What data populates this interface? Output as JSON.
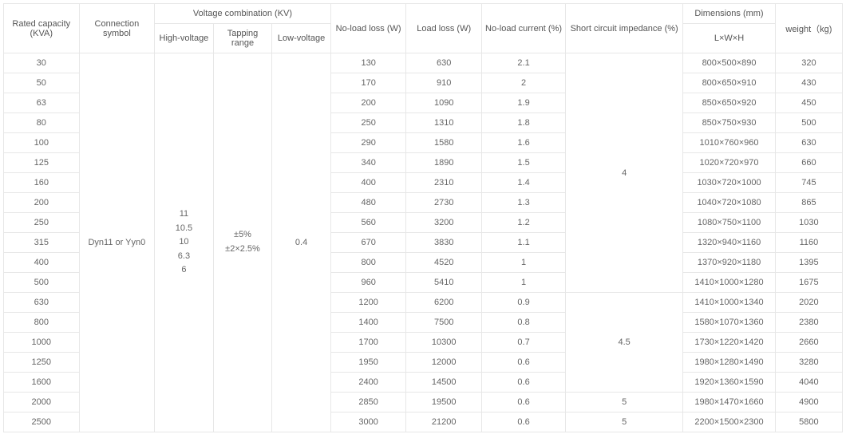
{
  "headers": {
    "rated_capacity": "Rated capacity (KVA)",
    "connection_symbol": "Connection symbol",
    "voltage_combination": "Voltage combination (KV)",
    "high_voltage": "High-voltage",
    "tapping_range": "Tapping range",
    "low_voltage": "Low-voltage",
    "no_load_loss": "No-load loss (W)",
    "load_loss": "Load loss (W)",
    "no_load_current": "No-load current (%)",
    "short_circuit_impedance": "Short circuit impedance (%)",
    "dimensions": "Dimensions (mm)",
    "dimensions_sub": "L×W×H",
    "weight": "weight（kg)"
  },
  "shared": {
    "connection_symbol": "Dyn11 or Yyn0",
    "high_voltage_lines": [
      "11",
      "10.5",
      "10",
      "6.3",
      "6"
    ],
    "tapping_range_lines": [
      "±5%",
      "±2×2.5%"
    ],
    "low_voltage": "0.4"
  },
  "impedance": {
    "g1": "4",
    "g2": "4.5",
    "g3": "5",
    "g4": "5"
  },
  "rows": [
    {
      "capacity": "30",
      "no_load_loss": "130",
      "load_loss": "630",
      "no_load_current": "2.1",
      "dimensions": "800×500×890",
      "weight": "320"
    },
    {
      "capacity": "50",
      "no_load_loss": "170",
      "load_loss": "910",
      "no_load_current": "2",
      "dimensions": "800×650×910",
      "weight": "430"
    },
    {
      "capacity": "63",
      "no_load_loss": "200",
      "load_loss": "1090",
      "no_load_current": "1.9",
      "dimensions": "850×650×920",
      "weight": "450"
    },
    {
      "capacity": "80",
      "no_load_loss": "250",
      "load_loss": "1310",
      "no_load_current": "1.8",
      "dimensions": "850×750×930",
      "weight": "500"
    },
    {
      "capacity": "100",
      "no_load_loss": "290",
      "load_loss": "1580",
      "no_load_current": "1.6",
      "dimensions": "1010×760×960",
      "weight": "630"
    },
    {
      "capacity": "125",
      "no_load_loss": "340",
      "load_loss": "1890",
      "no_load_current": "1.5",
      "dimensions": "1020×720×970",
      "weight": "660"
    },
    {
      "capacity": "160",
      "no_load_loss": "400",
      "load_loss": "2310",
      "no_load_current": "1.4",
      "dimensions": "1030×720×1000",
      "weight": "745"
    },
    {
      "capacity": "200",
      "no_load_loss": "480",
      "load_loss": "2730",
      "no_load_current": "1.3",
      "dimensions": "1040×720×1080",
      "weight": "865"
    },
    {
      "capacity": "250",
      "no_load_loss": "560",
      "load_loss": "3200",
      "no_load_current": "1.2",
      "dimensions": "1080×750×1100",
      "weight": "1030"
    },
    {
      "capacity": "315",
      "no_load_loss": "670",
      "load_loss": "3830",
      "no_load_current": "1.1",
      "dimensions": "1320×940×1160",
      "weight": "1160"
    },
    {
      "capacity": "400",
      "no_load_loss": "800",
      "load_loss": "4520",
      "no_load_current": "1",
      "dimensions": "1370×920×1180",
      "weight": "1395"
    },
    {
      "capacity": "500",
      "no_load_loss": "960",
      "load_loss": "5410",
      "no_load_current": "1",
      "dimensions": "1410×1000×1280",
      "weight": "1675"
    },
    {
      "capacity": "630",
      "no_load_loss": "1200",
      "load_loss": "6200",
      "no_load_current": "0.9",
      "dimensions": "1410×1000×1340",
      "weight": "2020"
    },
    {
      "capacity": "800",
      "no_load_loss": "1400",
      "load_loss": "7500",
      "no_load_current": "0.8",
      "dimensions": "1580×1070×1360",
      "weight": "2380"
    },
    {
      "capacity": "1000",
      "no_load_loss": "1700",
      "load_loss": "10300",
      "no_load_current": "0.7",
      "dimensions": "1730×1220×1420",
      "weight": "2660"
    },
    {
      "capacity": "1250",
      "no_load_loss": "1950",
      "load_loss": "12000",
      "no_load_current": "0.6",
      "dimensions": "1980×1280×1490",
      "weight": "3280"
    },
    {
      "capacity": "1600",
      "no_load_loss": "2400",
      "load_loss": "14500",
      "no_load_current": "0.6",
      "dimensions": "1920×1360×1590",
      "weight": "4040"
    },
    {
      "capacity": "2000",
      "no_load_loss": "2850",
      "load_loss": "19500",
      "no_load_current": "0.6",
      "dimensions": "1980×1470×1660",
      "weight": "4900"
    },
    {
      "capacity": "2500",
      "no_load_loss": "3000",
      "load_loss": "21200",
      "no_load_current": "0.6",
      "dimensions": "2200×1500×2300",
      "weight": "5800"
    }
  ]
}
